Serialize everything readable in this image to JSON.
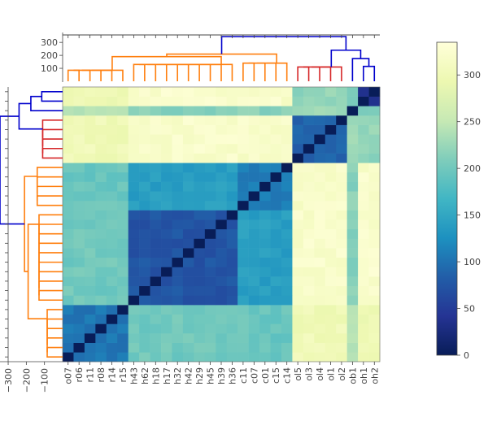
{
  "chart_data": {
    "type": "heatmap",
    "title": "",
    "labels": [
      "o07",
      "r06",
      "r11",
      "r08",
      "r14",
      "r15",
      "h43",
      "h62",
      "h18",
      "h17",
      "h32",
      "h42",
      "h29",
      "h45",
      "h39",
      "h36",
      "c11",
      "c07",
      "c01",
      "c15",
      "c14",
      "ol5",
      "ol3",
      "ol4",
      "ol1",
      "ol2",
      "ob1",
      "oh1",
      "oh2"
    ],
    "groups": {
      "r": [
        "o07",
        "r06",
        "r11",
        "r08",
        "r14",
        "r15"
      ],
      "h": [
        "h43",
        "h62",
        "h18",
        "h17",
        "h32",
        "h42",
        "h29",
        "h45",
        "h39",
        "h36"
      ],
      "c": [
        "c11",
        "c07",
        "c01",
        "c15",
        "c14"
      ],
      "ol": [
        "ol5",
        "ol3",
        "ol4",
        "ol1",
        "ol2"
      ],
      "ob1": [
        "ob1"
      ],
      "oh": [
        "oh1",
        "oh2"
      ]
    },
    "group_order": [
      "r",
      "h",
      "c",
      "ol",
      "ob1",
      "oh"
    ],
    "block_values": {
      "r": {
        "r": 105,
        "h": 200,
        "c": 195,
        "ol": 300,
        "ob1": 240,
        "oh": 295
      },
      "h": {
        "r": 200,
        "h": 75,
        "c": 140,
        "ol": 320,
        "ob1": 215,
        "oh": 322
      },
      "c": {
        "r": 195,
        "h": 140,
        "c": 110,
        "ol": 318,
        "ob1": 215,
        "oh": 320
      },
      "ol": {
        "r": 300,
        "h": 320,
        "c": 318,
        "ol": 85,
        "ob1": 230,
        "oh": 220
      },
      "ob1": {
        "r": 240,
        "h": 215,
        "c": 215,
        "ol": 230,
        "ob1": 0,
        "oh": 205
      },
      "oh": {
        "r": 295,
        "h": 322,
        "c": 320,
        "ol": 220,
        "ob1": 205,
        "oh": 40
      }
    },
    "colorscale": {
      "min": 0,
      "max": 335,
      "name": "YlGnBu (reversed)",
      "ticks": [
        "0",
        "50",
        "100",
        "150",
        "200",
        "250",
        "300"
      ],
      "tick_values": [
        0,
        50,
        100,
        150,
        200,
        250,
        300
      ],
      "stops": [
        [
          0.0,
          "#081d58"
        ],
        [
          0.125,
          "#253494"
        ],
        [
          0.25,
          "#225ea8"
        ],
        [
          0.375,
          "#1d91c0"
        ],
        [
          0.5,
          "#41b6c4"
        ],
        [
          0.625,
          "#7fcdbb"
        ],
        [
          0.75,
          "#c7e9b4"
        ],
        [
          0.875,
          "#edf8b1"
        ],
        [
          1.0,
          "#ffffd9"
        ]
      ]
    },
    "top_dendrogram": {
      "axis_ticks": [
        "100",
        "200",
        "300"
      ],
      "axis_tick_values": [
        100,
        200,
        300
      ],
      "ylim": [
        0,
        345
      ],
      "cluster_heights": {
        "r": 85,
        "h": 130,
        "c": 140,
        "r_h_c": 210,
        "ol": 110,
        "ob1_oh": 175,
        "outlier": 240,
        "root": 345
      },
      "colors": {
        "link_low": "#ff7f0e",
        "link_mid": "#d62728",
        "link_root": "#0000cc"
      }
    },
    "left_dendrogram": {
      "axis_ticks": [
        "−300",
        "−200",
        "−100"
      ],
      "axis_tick_values": [
        -300,
        -200,
        -100
      ],
      "xlim": [
        -345,
        0
      ]
    }
  }
}
